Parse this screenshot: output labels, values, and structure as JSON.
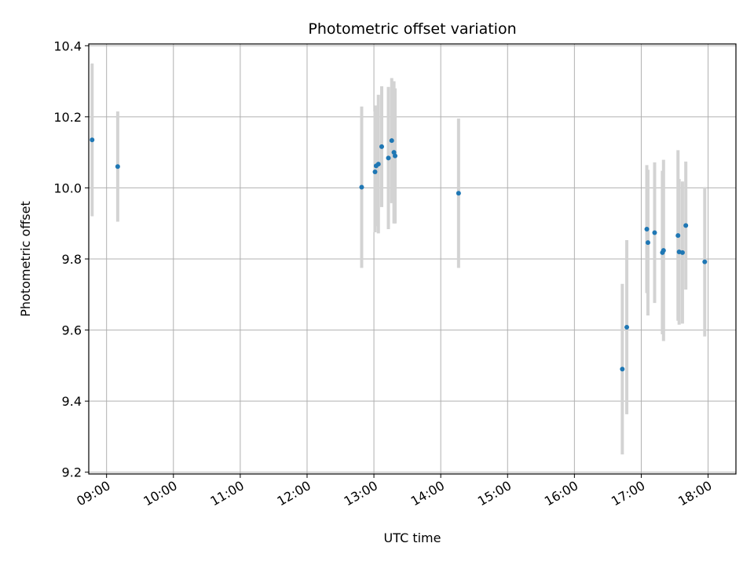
{
  "chart_data": {
    "type": "scatter",
    "title": "Photometric offset variation",
    "xlabel": "UTC time",
    "ylabel": "Photometric offset",
    "xlim": [
      "08:44",
      "18:25"
    ],
    "ylim": [
      9.195,
      10.405
    ],
    "grid": true,
    "legend": "none",
    "x_ticks": [
      "09:00",
      "10:00",
      "11:00",
      "12:00",
      "13:00",
      "14:00",
      "15:00",
      "16:00",
      "17:00",
      "18:00"
    ],
    "y_ticks": [
      "9.2",
      "9.4",
      "9.6",
      "9.8",
      "10.0",
      "10.2",
      "10.4"
    ],
    "colors": {
      "point": "#1f77b4",
      "errorbar": "#d3d3d3"
    },
    "series": [
      {
        "points": [
          {
            "x": "08:47",
            "y": 10.135,
            "err": 0.215
          },
          {
            "x": "09:10",
            "y": 10.06,
            "err": 0.155
          },
          {
            "x": "12:49",
            "y": 10.002,
            "err": 0.227
          },
          {
            "x": "13:01",
            "y": 10.045,
            "err": 0.17
          },
          {
            "x": "13:02",
            "y": 10.062,
            "err": 0.17
          },
          {
            "x": "13:04",
            "y": 10.067,
            "err": 0.195
          },
          {
            "x": "13:07",
            "y": 10.116,
            "err": 0.17
          },
          {
            "x": "13:13",
            "y": 10.084,
            "err": 0.2
          },
          {
            "x": "13:16",
            "y": 10.133,
            "err": 0.176
          },
          {
            "x": "13:18",
            "y": 10.1,
            "err": 0.2
          },
          {
            "x": "13:19",
            "y": 10.09,
            "err": 0.19
          },
          {
            "x": "14:16",
            "y": 9.985,
            "err": 0.21
          },
          {
            "x": "16:43",
            "y": 9.49,
            "err": 0.24
          },
          {
            "x": "16:47",
            "y": 9.608,
            "err": 0.245
          },
          {
            "x": "17:05",
            "y": 9.884,
            "err": 0.18
          },
          {
            "x": "17:06",
            "y": 9.846,
            "err": 0.205
          },
          {
            "x": "17:12",
            "y": 9.874,
            "err": 0.198
          },
          {
            "x": "17:19",
            "y": 9.818,
            "err": 0.23
          },
          {
            "x": "17:20",
            "y": 9.824,
            "err": 0.255
          },
          {
            "x": "17:33",
            "y": 9.866,
            "err": 0.24
          },
          {
            "x": "17:34",
            "y": 9.82,
            "err": 0.205
          },
          {
            "x": "17:37",
            "y": 9.818,
            "err": 0.2
          },
          {
            "x": "17:40",
            "y": 9.894,
            "err": 0.18
          },
          {
            "x": "17:57",
            "y": 9.792,
            "err": 0.21
          }
        ]
      }
    ]
  }
}
